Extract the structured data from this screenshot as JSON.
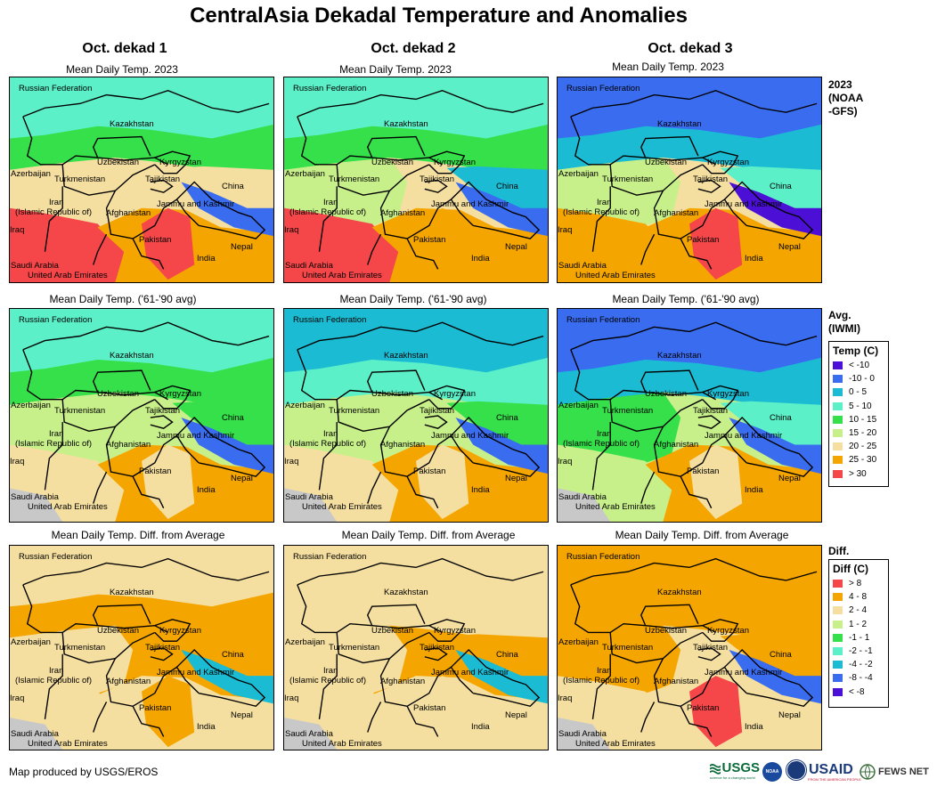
{
  "title": "CentralAsia Dekadal Temperature and Anomalies",
  "columns": [
    "Oct. dekad 1",
    "Oct. dekad 2",
    "Oct. dekad 3"
  ],
  "row_titles": {
    "current": "Mean Daily Temp. 2023",
    "average": "Mean Daily Temp. ('61-'90 avg)",
    "diff": "Mean Daily Temp. Diff. from Average"
  },
  "side_labels": {
    "current_line1": "2023",
    "current_line2": "(NOAA",
    "current_line3": "-GFS)",
    "average_line1": "Avg.",
    "average_line2": "(IWMI)",
    "diff": "Diff."
  },
  "places": {
    "russia": "Russian Federation",
    "kazakhstan": "Kazakhstan",
    "uzbekistan": "Uzbekistan",
    "kyrgyzstan": "Kyrgyzstan",
    "azerbaijan": "Azerbaijan",
    "turkmenistan": "Turkmenistan",
    "tajikistan": "Tajikistan",
    "china": "China",
    "iran1": "Iran",
    "iran2": "(Islamic Republic of)",
    "afghanistan": "Afghanistan",
    "kashmir": "Jammu and Kashmir",
    "iraq": "Iraq",
    "pakistan": "Pakistan",
    "nepal": "Nepal",
    "india": "India",
    "saudi": "Saudi Arabia",
    "uae": "United Arab Emirates"
  },
  "temp_legend": {
    "title": "Temp (C)",
    "items": [
      {
        "label": "< -10",
        "color": "#4b0fd6"
      },
      {
        "label": "-10 - 0",
        "color": "#3a6cf0"
      },
      {
        "label": "0 - 5",
        "color": "#1bbcd3"
      },
      {
        "label": "5 - 10",
        "color": "#5cf0c8"
      },
      {
        "label": "10 - 15",
        "color": "#35e04a"
      },
      {
        "label": "15 - 20",
        "color": "#c8f08a"
      },
      {
        "label": "20 - 25",
        "color": "#f5dfa0"
      },
      {
        "label": "25 - 30",
        "color": "#f5a500"
      },
      {
        "label": "> 30",
        "color": "#f5474a"
      }
    ]
  },
  "diff_legend": {
    "title": "Diff (C)",
    "items": [
      {
        "label": "> 8",
        "color": "#f5474a"
      },
      {
        "label": "4 - 8",
        "color": "#f5a500"
      },
      {
        "label": "2 - 4",
        "color": "#f5dfa0"
      },
      {
        "label": "1 - 2",
        "color": "#c8f08a"
      },
      {
        "label": "-1 - 1",
        "color": "#35e04a"
      },
      {
        "label": "-2 - -1",
        "color": "#5cf0c8"
      },
      {
        "label": "-4 - -2",
        "color": "#1bbcd3"
      },
      {
        "label": "-8 - -4",
        "color": "#3a6cf0"
      },
      {
        "label": "< -8",
        "color": "#4b0fd6"
      }
    ]
  },
  "footer": "Map produced by USGS/EROS",
  "logos": {
    "usgs": "USGS",
    "usgs_tag": "science for a changing world",
    "noaa": "NOAA",
    "usaid": "USAID",
    "usaid_tag": "FROM THE AMERICAN PEOPLE",
    "fews": "FEWS NET"
  }
}
